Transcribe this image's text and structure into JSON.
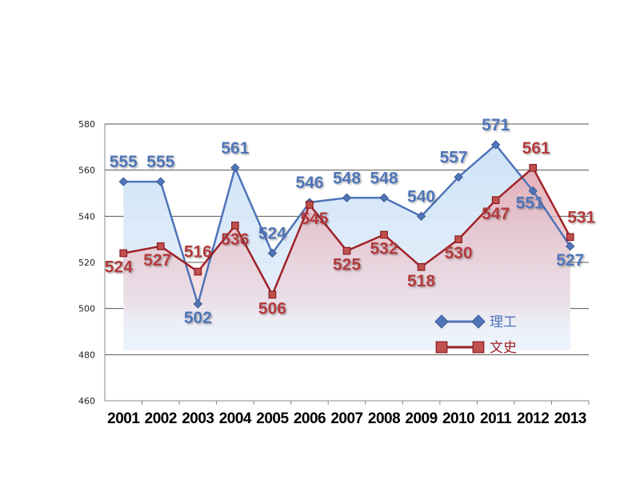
{
  "chart_data": {
    "type": "line",
    "categories": [
      "2001",
      "2002",
      "2003",
      "2004",
      "2005",
      "2006",
      "2007",
      "2008",
      "2009",
      "2010",
      "2011",
      "2012",
      "2013"
    ],
    "series": [
      {
        "name": "理工",
        "color": "#4f74b8",
        "fill": "#cfe3f7",
        "marker": "diamond",
        "values": [
          555,
          555,
          502,
          561,
          524,
          546,
          548,
          548,
          540,
          557,
          571,
          551,
          527
        ]
      },
      {
        "name": "文史",
        "color": "#a02328",
        "fill": "#e6b7bf",
        "marker": "square",
        "values": [
          524,
          527,
          516,
          536,
          506,
          545,
          525,
          532,
          518,
          530,
          547,
          561,
          531
        ]
      }
    ],
    "ylim": [
      460,
      580
    ],
    "yticks": [
      "460",
      "480",
      "500",
      "520",
      "540",
      "560",
      "580"
    ],
    "grid": true,
    "legend": "inside-lower-right",
    "title": "",
    "xlabel": "",
    "ylabel": ""
  }
}
